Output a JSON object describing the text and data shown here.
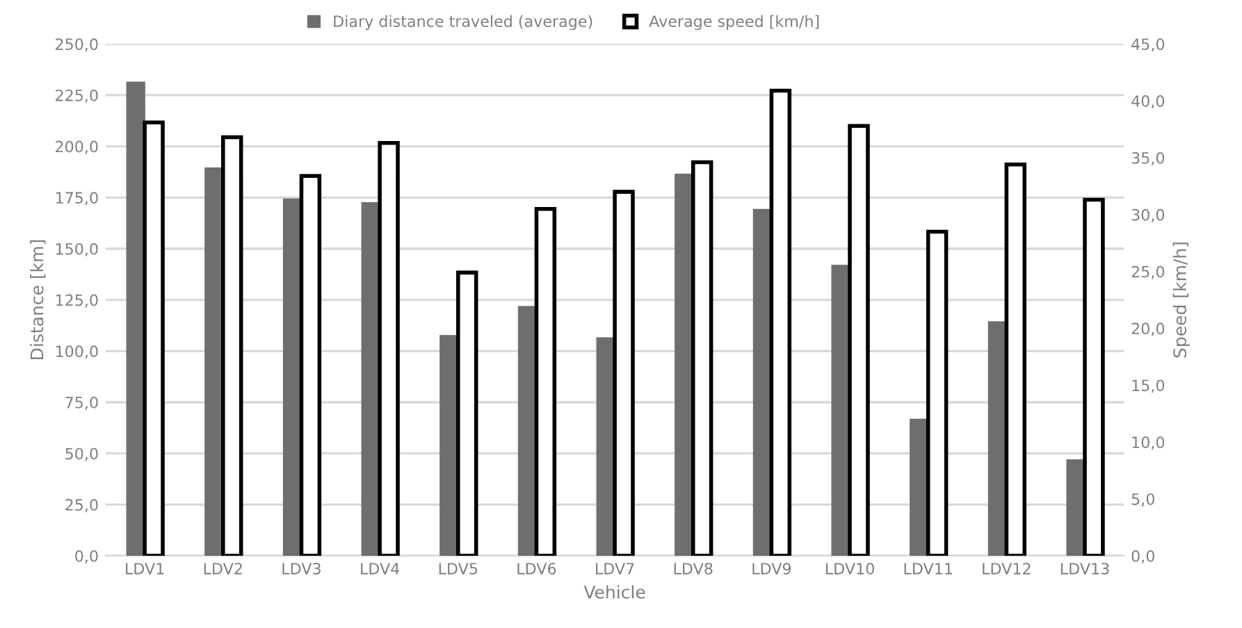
{
  "chart_data": {
    "type": "bar",
    "xlabel": "Vehicle",
    "ylabel": "Distance [km]",
    "y2label": "Speed [km/h]",
    "categories": [
      "LDV1",
      "LDV2",
      "LDV3",
      "LDV4",
      "LDV5",
      "LDV6",
      "LDV7",
      "LDV8",
      "LDV9",
      "LDV10",
      "LDV11",
      "LDV12",
      "LDV13"
    ],
    "series": [
      {
        "name": "Diary distance traveled (average)",
        "color": "#6e6e6e",
        "values": [
          231.4,
          189.5,
          174.3,
          172.5,
          107.6,
          121.8,
          106.5,
          186.4,
          169.2,
          141.9,
          66.7,
          114.3,
          46.9
        ]
      },
      {
        "name": "Average speed [km/h]",
        "color": "#ffffff",
        "axis": "y2",
        "values": [
          38.1,
          36.8,
          33.4,
          36.3,
          24.9,
          30.5,
          32.0,
          34.6,
          40.9,
          37.8,
          28.5,
          34.4,
          31.3
        ]
      }
    ],
    "ylim": [
      0,
      250
    ],
    "yticks": [
      {
        "value": 0,
        "label": "0,0"
      },
      {
        "value": 25,
        "label": "25,0"
      },
      {
        "value": 50,
        "label": "50,0"
      },
      {
        "value": 75,
        "label": "75,0"
      },
      {
        "value": 100,
        "label": "100,0"
      },
      {
        "value": 125,
        "label": "125,0"
      },
      {
        "value": 150,
        "label": "150,0"
      },
      {
        "value": 175,
        "label": "175,0"
      },
      {
        "value": 200,
        "label": "200,0"
      },
      {
        "value": 225,
        "label": "225,0"
      },
      {
        "value": 250,
        "label": "250,0"
      }
    ],
    "y2lim": [
      0,
      45
    ],
    "y2ticks": [
      {
        "value": 0,
        "label": "0,0"
      },
      {
        "value": 5,
        "label": "5,0"
      },
      {
        "value": 10,
        "label": "10,0"
      },
      {
        "value": 15,
        "label": "15,0"
      },
      {
        "value": 20,
        "label": "20,0"
      },
      {
        "value": 25,
        "label": "25,0"
      },
      {
        "value": 30,
        "label": "30,0"
      },
      {
        "value": 35,
        "label": "35,0"
      },
      {
        "value": 40,
        "label": "40,0"
      },
      {
        "value": 45,
        "label": "45,0"
      }
    ],
    "grid": "y",
    "legend": "top"
  }
}
